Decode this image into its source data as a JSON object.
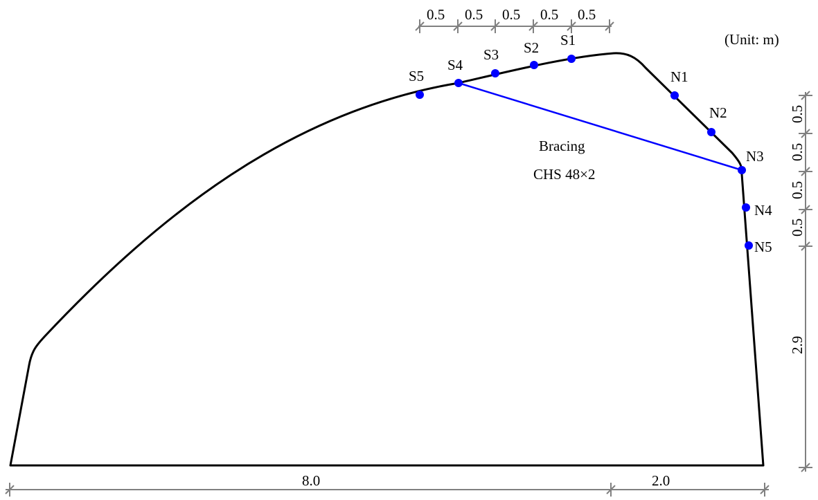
{
  "unit_label": "(Unit: m)",
  "colors": {
    "outline": "#000000",
    "points": "#0000ff",
    "bracing": "#0000ff",
    "dimension": "#808080"
  },
  "bracing": {
    "line1": "Bracing",
    "line2": "CHS 48×2"
  },
  "measurement_points": {
    "roof": [
      "S1",
      "S2",
      "S3",
      "S4",
      "S5"
    ],
    "wall": [
      "N1",
      "N2",
      "N3",
      "N4",
      "N5"
    ]
  },
  "dimensions": {
    "top": [
      "0.5",
      "0.5",
      "0.5",
      "0.5",
      "0.5"
    ],
    "bottom_left": "8.0",
    "bottom_right": "2.0",
    "right": [
      "0.5",
      "0.5",
      "0.5",
      "0.5",
      "2.9"
    ]
  }
}
